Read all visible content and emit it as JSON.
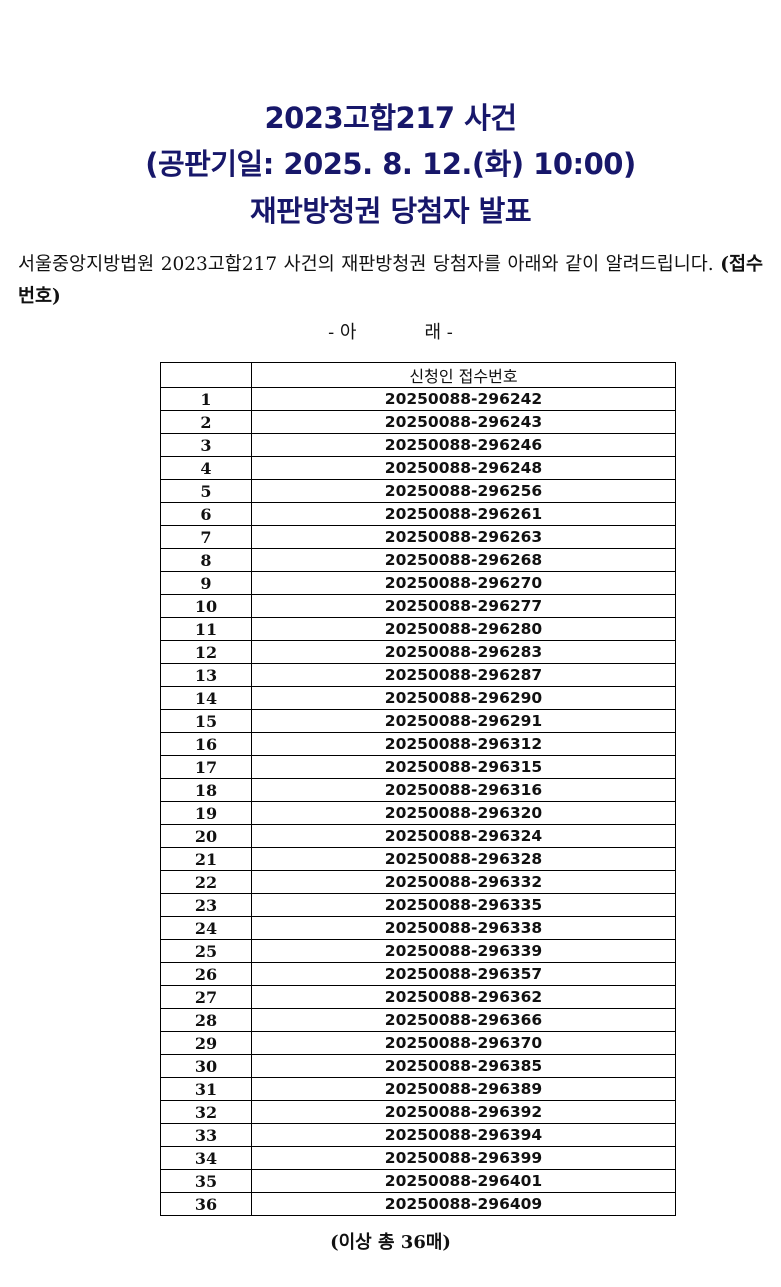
{
  "title": {
    "line1": "2023고합217 사건",
    "line2": "(공판기일: 2025. 8. 12.(화) 10:00)",
    "line3": "재판방청권 당첨자 발표"
  },
  "intro": {
    "text": "서울중앙지방법원 2023고합217 사건의 재판방청권 당첨자를 아래와 같이 알려드립니다.",
    "bold_suffix": "(접수번호)"
  },
  "section_marker": {
    "left": "- 아",
    "right": "래 -"
  },
  "table": {
    "headers": [
      "",
      "신청인 접수번호"
    ],
    "rows": [
      [
        "1",
        "20250088-296242"
      ],
      [
        "2",
        "20250088-296243"
      ],
      [
        "3",
        "20250088-296246"
      ],
      [
        "4",
        "20250088-296248"
      ],
      [
        "5",
        "20250088-296256"
      ],
      [
        "6",
        "20250088-296261"
      ],
      [
        "7",
        "20250088-296263"
      ],
      [
        "8",
        "20250088-296268"
      ],
      [
        "9",
        "20250088-296270"
      ],
      [
        "10",
        "20250088-296277"
      ],
      [
        "11",
        "20250088-296280"
      ],
      [
        "12",
        "20250088-296283"
      ],
      [
        "13",
        "20250088-296287"
      ],
      [
        "14",
        "20250088-296290"
      ],
      [
        "15",
        "20250088-296291"
      ],
      [
        "16",
        "20250088-296312"
      ],
      [
        "17",
        "20250088-296315"
      ],
      [
        "18",
        "20250088-296316"
      ],
      [
        "19",
        "20250088-296320"
      ],
      [
        "20",
        "20250088-296324"
      ],
      [
        "21",
        "20250088-296328"
      ],
      [
        "22",
        "20250088-296332"
      ],
      [
        "23",
        "20250088-296335"
      ],
      [
        "24",
        "20250088-296338"
      ],
      [
        "25",
        "20250088-296339"
      ],
      [
        "26",
        "20250088-296357"
      ],
      [
        "27",
        "20250088-296362"
      ],
      [
        "28",
        "20250088-296366"
      ],
      [
        "29",
        "20250088-296370"
      ],
      [
        "30",
        "20250088-296385"
      ],
      [
        "31",
        "20250088-296389"
      ],
      [
        "32",
        "20250088-296392"
      ],
      [
        "33",
        "20250088-296394"
      ],
      [
        "34",
        "20250088-296399"
      ],
      [
        "35",
        "20250088-296401"
      ],
      [
        "36",
        "20250088-296409"
      ]
    ]
  },
  "footer": "(이상 총 36매)",
  "colors": {
    "title": "#17176a"
  }
}
